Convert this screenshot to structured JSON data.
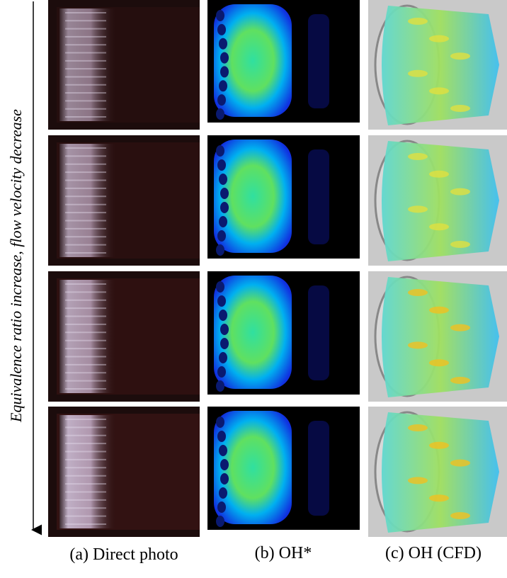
{
  "figure": {
    "y_axis_label": "Equivalence ratio increase, flow velocity decrease",
    "columns": [
      {
        "caption": "(a) Direct photo"
      },
      {
        "caption": "(b) OH*"
      },
      {
        "caption": "(c) OH (CFD)"
      }
    ]
  }
}
